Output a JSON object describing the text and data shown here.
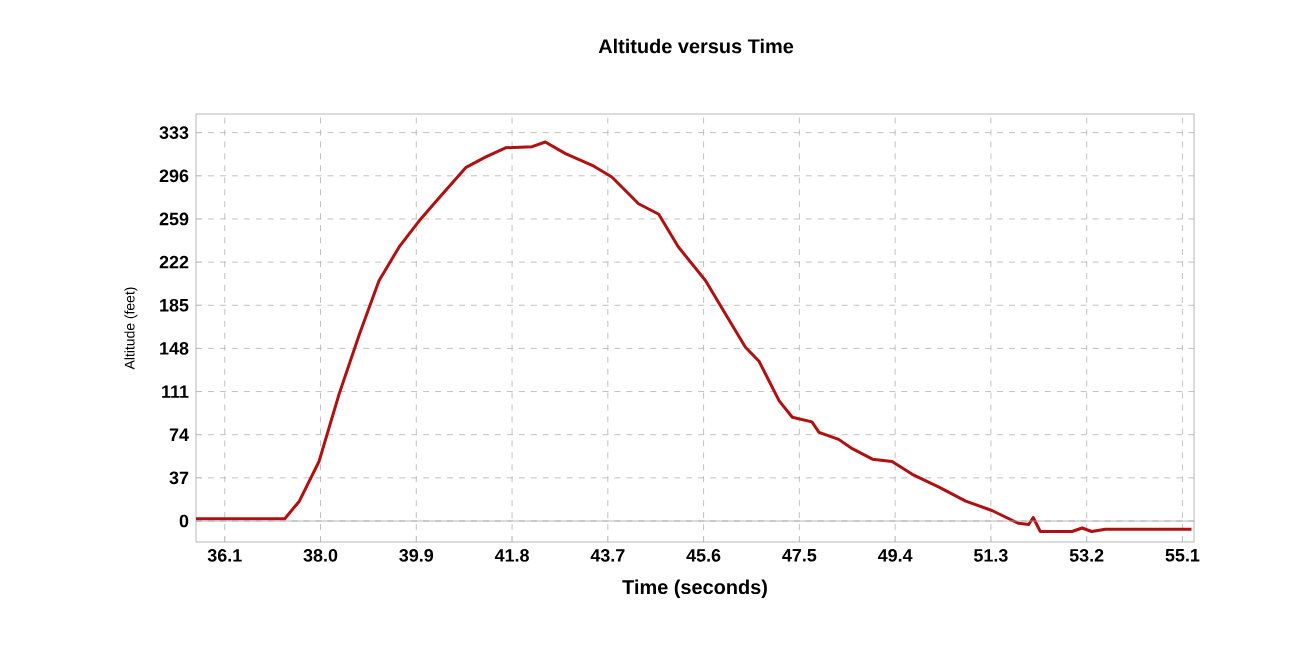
{
  "chart_data": {
    "type": "line",
    "title": "Altitude versus Time",
    "xlabel": "Time (seconds)",
    "ylabel": "Altitude (feet)",
    "x": [
      35.53,
      37.29,
      37.58,
      37.97,
      38.37,
      38.77,
      39.16,
      39.56,
      39.95,
      40.35,
      40.88,
      41.27,
      41.67,
      42.2,
      42.46,
      42.86,
      43.39,
      43.78,
      44.31,
      44.71,
      45.1,
      45.64,
      46.04,
      46.43,
      46.7,
      47.1,
      47.36,
      47.75,
      47.89,
      48.28,
      48.55,
      48.95,
      49.34,
      49.74,
      50.27,
      50.8,
      51.32,
      51.85,
      52.05,
      52.14,
      52.28,
      52.91,
      53.11,
      53.3,
      53.57,
      55.28
    ],
    "series": [
      {
        "color": "#b01010",
        "values": [
          2,
          2,
          17,
          51,
          109,
          160,
          206,
          235,
          257,
          277,
          303,
          312,
          320,
          321,
          325,
          315,
          305,
          295,
          272,
          263,
          235,
          206,
          177,
          149,
          137,
          103,
          89,
          85,
          76,
          70,
          62,
          53,
          51,
          40,
          29,
          17,
          9,
          -2,
          -3,
          3,
          -9,
          -9,
          -6,
          -9,
          -7,
          -7
        ]
      }
    ],
    "xlim": [
      35.53,
      55.33
    ],
    "ylim": [
      -18,
      349
    ],
    "xticks": [
      36.1,
      {
        "value": 38.0,
        "label": "38.0"
      },
      39.9,
      41.8,
      43.7,
      45.6,
      47.5,
      49.4,
      51.3,
      53.2,
      55.1
    ],
    "yticks": [
      0,
      37,
      74,
      111,
      148,
      185,
      222,
      259,
      296,
      333
    ],
    "grid": true,
    "marker": "none",
    "line_style": "solid"
  }
}
